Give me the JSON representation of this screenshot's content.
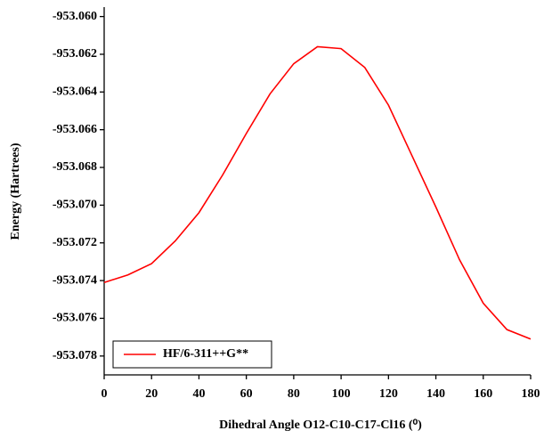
{
  "chart_data": {
    "type": "line",
    "xlabel": "Dihedral Angle O12-C10-C17-Cl16 (⁰)",
    "ylabel": "Energy (Hartrees)",
    "x": [
      0,
      10,
      20,
      30,
      40,
      50,
      60,
      70,
      80,
      90,
      100,
      110,
      120,
      130,
      140,
      150,
      160,
      170,
      180
    ],
    "series": [
      {
        "name": "HF/6-311++G**",
        "color": "#ff0000",
        "values": [
          -953.0741,
          -953.0737,
          -953.0731,
          -953.0719,
          -953.0704,
          -953.0684,
          -953.0662,
          -953.0641,
          -953.0625,
          -953.0616,
          -953.0617,
          -953.0627,
          -953.0647,
          -953.0674,
          -953.0701,
          -953.0729,
          -953.0752,
          -953.0766,
          -953.0771
        ]
      }
    ],
    "xlim": [
      0,
      180
    ],
    "xticks": [
      0,
      20,
      40,
      60,
      80,
      100,
      120,
      140,
      160,
      180
    ],
    "ylim": [
      -953.079,
      -953.0595
    ],
    "yticks": [
      {
        "value": -953.078,
        "label": "-953.078"
      },
      {
        "value": -953.076,
        "label": "-953.076"
      },
      {
        "value": -953.074,
        "label": "-953.074"
      },
      {
        "value": -953.072,
        "label": "-953.072"
      },
      {
        "value": -953.07,
        "label": "-953.070"
      },
      {
        "value": -953.068,
        "label": "-953.068"
      },
      {
        "value": -953.066,
        "label": "-953.066"
      },
      {
        "value": -953.064,
        "label": "-953.064"
      },
      {
        "value": -953.062,
        "label": "-953.062"
      },
      {
        "value": -953.06,
        "label": "-953.060"
      }
    ],
    "legend": "lower left",
    "grid": false
  }
}
